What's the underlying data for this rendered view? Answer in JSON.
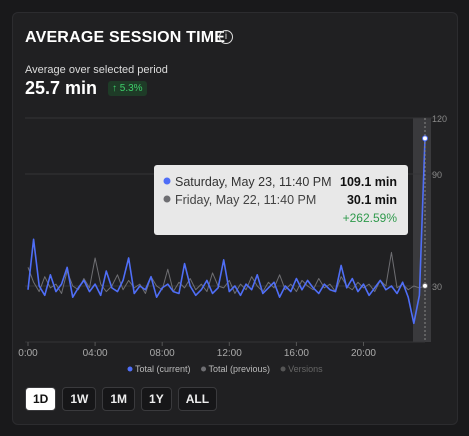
{
  "header": {
    "title": "AVERAGE SESSION TIME",
    "subtitle": "Average over selected period",
    "value": "25.7 min",
    "change": "5.3%"
  },
  "chart_data": {
    "type": "line",
    "x": [
      0,
      20,
      40,
      60,
      80,
      100,
      120,
      140,
      160,
      180,
      200,
      220,
      240,
      260,
      280,
      300,
      320,
      340,
      360,
      380,
      400,
      420,
      440,
      460,
      480,
      500,
      520,
      540,
      560,
      580,
      600,
      620,
      640,
      660,
      680,
      700,
      720,
      740,
      760,
      780,
      800,
      820,
      840,
      860,
      880,
      900,
      920,
      940,
      960,
      980,
      1000,
      1020,
      1040,
      1060,
      1080,
      1100,
      1120,
      1140,
      1160,
      1180,
      1200,
      1220,
      1240,
      1260,
      1280,
      1300,
      1320,
      1340,
      1360,
      1380,
      1400,
      1420
    ],
    "series": [
      {
        "name": "Total (current)",
        "color": "#4f6ef7",
        "values": [
          28,
          55,
          30,
          25,
          36,
          27,
          31,
          40,
          24,
          29,
          33,
          27,
          31,
          25,
          38,
          29,
          27,
          33,
          45,
          26,
          30,
          28,
          35,
          24,
          29,
          31,
          27,
          26,
          42,
          30,
          25,
          28,
          33,
          26,
          29,
          44,
          27,
          30,
          25,
          31,
          28,
          36,
          26,
          29,
          32,
          24,
          30,
          27,
          34,
          28,
          33,
          29,
          26,
          31,
          28,
          27,
          41,
          29,
          34,
          27,
          31,
          25,
          29,
          33,
          28,
          30,
          26,
          32,
          24,
          10,
          25,
          109.1
        ]
      },
      {
        "name": "Total (previous)",
        "color": "#6e6e72",
        "values": [
          40,
          32,
          27,
          35,
          29,
          31,
          26,
          38,
          30,
          28,
          34,
          29,
          45,
          31,
          27,
          30,
          36,
          28,
          33,
          29,
          31,
          26,
          35,
          30,
          28,
          39,
          27,
          32,
          29,
          34,
          28,
          31,
          27,
          37,
          30,
          29,
          33,
          26,
          31,
          28,
          35,
          30,
          27,
          32,
          29,
          36,
          28,
          31,
          27,
          33,
          30,
          28,
          34,
          29,
          31,
          27,
          35,
          30,
          28,
          32,
          29,
          31,
          27,
          33,
          30,
          48,
          29,
          31,
          28,
          30,
          29,
          30.1
        ]
      }
    ],
    "legend_extra": "Versions",
    "xlim": [
      0,
      1420
    ],
    "xticks": [
      {
        "value": 0,
        "label": "0:00"
      },
      {
        "value": 240,
        "label": "04:00"
      },
      {
        "value": 480,
        "label": "08:00"
      },
      {
        "value": 720,
        "label": "12:00"
      },
      {
        "value": 960,
        "label": "16:00"
      },
      {
        "value": 1200,
        "label": "20:00"
      }
    ],
    "ylim": [
      0,
      120
    ],
    "yticks": [
      30,
      90,
      120
    ],
    "grid": true,
    "tooltip": {
      "current_date": "Saturday, May 23, 11:40 PM",
      "current_value": "109.1 min",
      "previous_date": "Friday, May 22, 11:40 PM",
      "previous_value": "30.1 min",
      "change": "+262.59%"
    }
  },
  "ranges": [
    "1D",
    "1W",
    "1M",
    "1Y",
    "ALL"
  ]
}
